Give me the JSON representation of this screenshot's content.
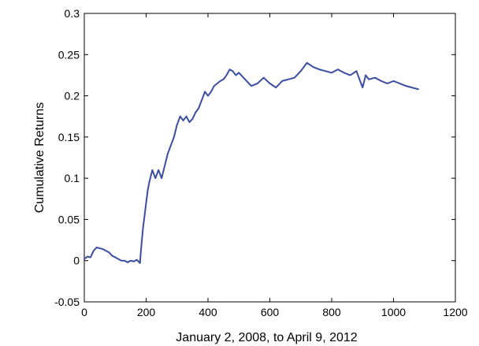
{
  "chart_data": {
    "type": "line",
    "xlabel": "January 2, 2008, to April 9, 2012",
    "ylabel": "Cumulative Returns",
    "xlim": [
      0,
      1200
    ],
    "ylim": [
      -0.05,
      0.3
    ],
    "x_ticks": [
      0,
      200,
      400,
      600,
      800,
      1000,
      1200
    ],
    "x_tick_labels": [
      "0",
      "200",
      "400",
      "600",
      "800",
      "1000",
      "1200"
    ],
    "y_ticks": [
      -0.05,
      0,
      0.05,
      0.1,
      0.15,
      0.2,
      0.25,
      0.3
    ],
    "y_tick_labels": [
      "-0.05",
      "0",
      "0.05",
      "0.1",
      "0.15",
      "0.2",
      "0.25",
      "0.3"
    ],
    "grid": false,
    "line_color": "#3a4da3",
    "series": [
      {
        "x": [
          0,
          10,
          20,
          30,
          40,
          50,
          60,
          70,
          80,
          90,
          100,
          110,
          120,
          130,
          140,
          150,
          160,
          170,
          180,
          185,
          190,
          195,
          200,
          205,
          210,
          220,
          230,
          240,
          250,
          260,
          270,
          280,
          290,
          300,
          310,
          320,
          330,
          340,
          350,
          360,
          370,
          380,
          390,
          400,
          410,
          420,
          430,
          440,
          450,
          460,
          470,
          480,
          490,
          500,
          520,
          540,
          560,
          580,
          600,
          620,
          640,
          660,
          680,
          700,
          720,
          740,
          760,
          780,
          800,
          820,
          840,
          860,
          880,
          900,
          910,
          920,
          940,
          960,
          980,
          1000,
          1020,
          1040,
          1060,
          1080
        ],
        "values": [
          0.002,
          0.005,
          0.004,
          0.012,
          0.016,
          0.015,
          0.014,
          0.012,
          0.01,
          0.006,
          0.004,
          0.002,
          0.0,
          0.0,
          -0.002,
          0.0,
          -0.001,
          0.001,
          -0.003,
          0.02,
          0.04,
          0.055,
          0.07,
          0.085,
          0.095,
          0.11,
          0.1,
          0.11,
          0.1,
          0.115,
          0.13,
          0.14,
          0.15,
          0.165,
          0.175,
          0.17,
          0.175,
          0.168,
          0.172,
          0.18,
          0.185,
          0.195,
          0.205,
          0.2,
          0.205,
          0.212,
          0.215,
          0.218,
          0.22,
          0.225,
          0.232,
          0.23,
          0.225,
          0.228,
          0.22,
          0.212,
          0.215,
          0.222,
          0.215,
          0.21,
          0.218,
          0.22,
          0.222,
          0.23,
          0.24,
          0.235,
          0.232,
          0.23,
          0.228,
          0.232,
          0.228,
          0.225,
          0.23,
          0.21,
          0.225,
          0.22,
          0.222,
          0.218,
          0.215,
          0.218,
          0.215,
          0.212,
          0.21,
          0.208
        ]
      }
    ]
  }
}
